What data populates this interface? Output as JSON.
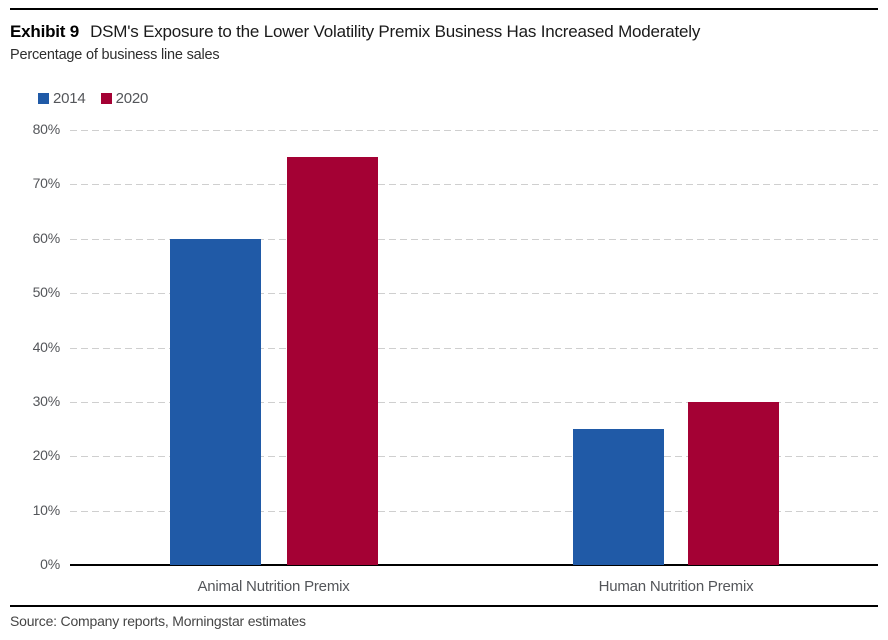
{
  "header": {
    "exhibit_label": "Exhibit 9",
    "title": "DSM's Exposure to the Lower Volatility Premix Business Has Increased Moderately",
    "subtitle": "Percentage of business line sales"
  },
  "legend": [
    {
      "label": "2014",
      "color": "#205AA7"
    },
    {
      "label": "2020",
      "color": "#A40134"
    }
  ],
  "chart_data": {
    "type": "bar",
    "title": "DSM's Exposure to the Lower Volatility Premix Business Has Increased Moderately",
    "subtitle": "Percentage of business line sales",
    "categories": [
      "Animal Nutrition Premix",
      "Human Nutrition Premix"
    ],
    "series": [
      {
        "name": "2014",
        "color": "#205AA7",
        "values": [
          60,
          25
        ]
      },
      {
        "name": "2020",
        "color": "#A40134",
        "values": [
          75,
          30
        ]
      }
    ],
    "xlabel": "",
    "ylabel": "Percentage of business line sales",
    "ylim": [
      0,
      80
    ],
    "yticks": [
      0,
      10,
      20,
      30,
      40,
      50,
      60,
      70,
      80
    ],
    "ytick_suffix": "%",
    "grid": "horizontal-dashed",
    "legend_position": "top-left"
  },
  "footer": {
    "source": "Source: Company reports, Morningstar estimates"
  }
}
